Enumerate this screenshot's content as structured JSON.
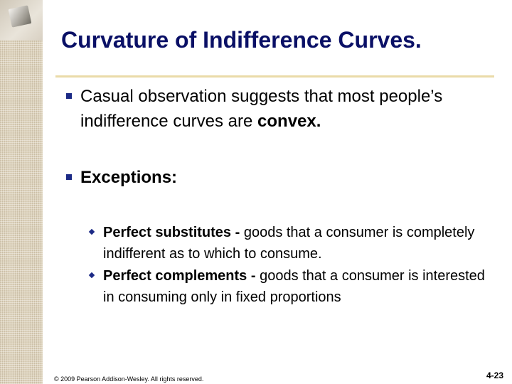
{
  "slide": {
    "title": "Curvature of Indifference Curves.",
    "bullets": [
      {
        "text": "Casual observation suggests that most people’s indifference curves are ",
        "bold_tail": "convex."
      },
      {
        "bold": "Exceptions:"
      }
    ],
    "sub_bullets": [
      {
        "bold": "Perfect substitutes -",
        "text": " goods that a consumer is completely indifferent as to which to consume."
      },
      {
        "bold": "Perfect complements -",
        "text": " goods that a consumer is interested in consuming only in fixed proportions"
      }
    ],
    "footer": "© 2009 Pearson Addison-Wesley. All rights reserved.",
    "page_number": "4-23",
    "colors": {
      "title": "#0a1066",
      "rule": "#eadba8",
      "bullet": "#1c2a86"
    }
  }
}
